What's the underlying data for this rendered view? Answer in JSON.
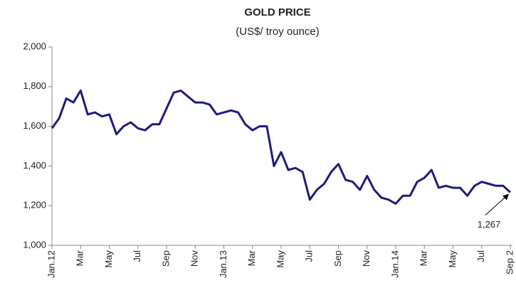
{
  "chart_data": {
    "type": "line",
    "title": "GOLD PRICE",
    "subtitle": "(US$/ troy ounce)",
    "categories": [
      "Jan.12",
      null,
      null,
      null,
      "Mar",
      null,
      null,
      null,
      "May",
      null,
      null,
      null,
      "Jul",
      null,
      null,
      null,
      "Sep",
      null,
      null,
      null,
      "Nov",
      null,
      null,
      null,
      "Jan.13",
      null,
      null,
      null,
      "Mar",
      null,
      null,
      null,
      "May",
      null,
      null,
      null,
      "Jul",
      null,
      null,
      null,
      "Sep",
      null,
      null,
      null,
      "Nov",
      null,
      null,
      null,
      "Jan.14",
      null,
      null,
      null,
      "Mar",
      null,
      null,
      null,
      "May",
      null,
      null,
      null,
      "Jul",
      null,
      null,
      null,
      "Sep 2"
    ],
    "series": [
      {
        "name": "Gold price",
        "color": "#1c1c7c",
        "values": [
          1590,
          1640,
          1740,
          1720,
          1780,
          1660,
          1670,
          1650,
          1660,
          1560,
          1600,
          1620,
          1590,
          1580,
          1610,
          1610,
          1690,
          1770,
          1780,
          1750,
          1720,
          1720,
          1710,
          1660,
          1670,
          1680,
          1670,
          1610,
          1580,
          1600,
          1600,
          1400,
          1470,
          1380,
          1390,
          1370,
          1230,
          1280,
          1310,
          1370,
          1410,
          1330,
          1320,
          1280,
          1350,
          1280,
          1240,
          1230,
          1210,
          1250,
          1250,
          1320,
          1340,
          1380,
          1290,
          1300,
          1290,
          1290,
          1250,
          1300,
          1320,
          1310,
          1300,
          1300,
          1267
        ]
      }
    ],
    "annotation": "1,267",
    "ylim": [
      1000,
      2000
    ],
    "yticks": [
      {
        "value": 1000,
        "label": "1,000"
      },
      {
        "value": 1200,
        "label": "1,200"
      },
      {
        "value": 1400,
        "label": "1,400"
      },
      {
        "value": 1600,
        "label": "1,600"
      },
      {
        "value": 1800,
        "label": "1,800"
      },
      {
        "value": 2000,
        "label": "2,000"
      }
    ],
    "grid": false
  }
}
